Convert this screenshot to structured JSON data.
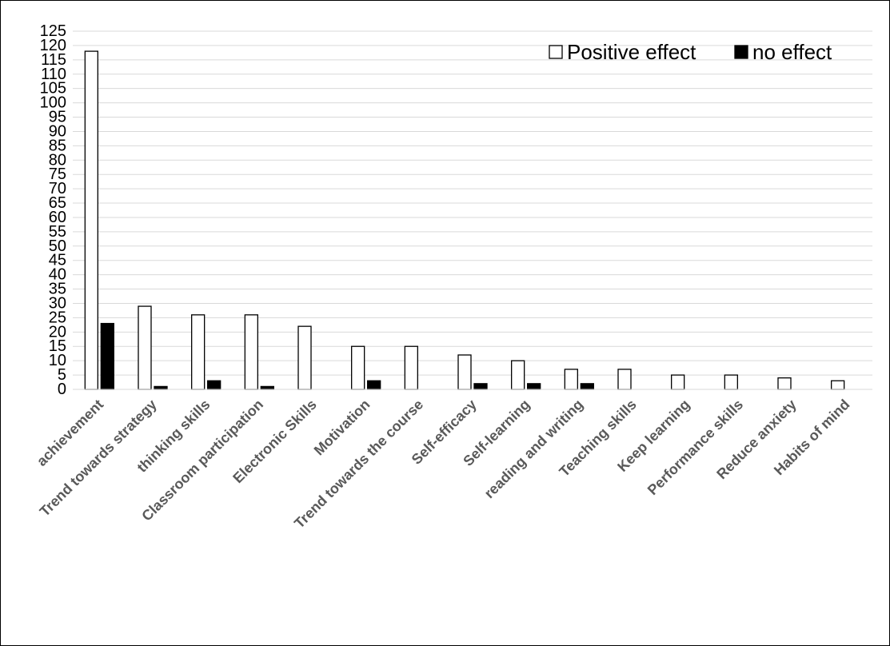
{
  "chart_data": {
    "type": "bar",
    "title": "",
    "xlabel": "",
    "ylabel": "",
    "ylim": [
      0,
      125
    ],
    "y_ticks": [
      0,
      5,
      10,
      15,
      20,
      25,
      30,
      35,
      40,
      45,
      50,
      55,
      60,
      65,
      70,
      75,
      80,
      85,
      90,
      95,
      100,
      105,
      110,
      115,
      120,
      125
    ],
    "grid": true,
    "legend_position": "top-right",
    "categories": [
      "achievement",
      "Trend towards strategy",
      "thinking skills",
      "Classroom participation",
      "Electronic Skills",
      "Motivation",
      "Trend towards the course",
      "Self-efficacy",
      "Self-learning",
      "reading and writing",
      "Teaching skills",
      "Keep learning",
      "Performance skills",
      "Reduce anxiety",
      "Habits of mind"
    ],
    "series": [
      {
        "name": "Positive effect",
        "color": "#ffffff",
        "stroke": "#000000",
        "values": [
          118,
          29,
          26,
          26,
          22,
          15,
          15,
          12,
          10,
          7,
          7,
          5,
          5,
          4,
          3
        ]
      },
      {
        "name": "no effect",
        "color": "#000000",
        "stroke": "#000000",
        "values": [
          23,
          1,
          3,
          1,
          0,
          3,
          0,
          2,
          2,
          2,
          0,
          0,
          0,
          0,
          0
        ]
      }
    ]
  }
}
